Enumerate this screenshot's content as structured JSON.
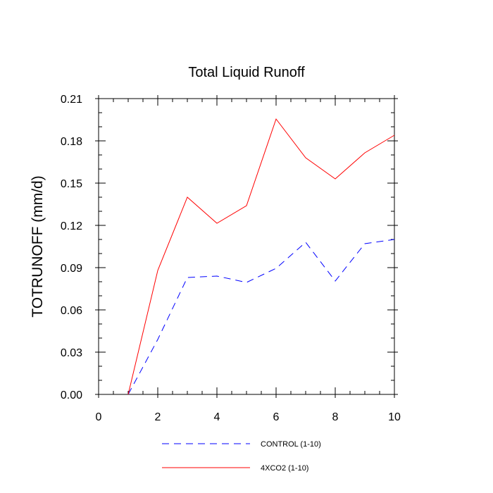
{
  "chart_data": {
    "type": "line",
    "title": "Total Liquid Runoff",
    "xlabel": "",
    "ylabel": "TOTRUNOFF  (mm/d)",
    "xlim": [
      0,
      10
    ],
    "ylim": [
      0,
      0.21
    ],
    "x_ticks": [
      0,
      2,
      4,
      6,
      8,
      10
    ],
    "x_tick_labels": [
      "0",
      "2",
      "4",
      "6",
      "8",
      "10"
    ],
    "y_ticks": [
      0,
      0.03,
      0.06,
      0.09,
      0.12,
      0.15,
      0.18,
      0.21
    ],
    "y_tick_labels": [
      "0.00",
      "0.03",
      "0.06",
      "0.09",
      "0.12",
      "0.15",
      "0.18",
      "0.21"
    ],
    "grid": false,
    "legend_position": "bottom",
    "series": [
      {
        "name": "CONTROL (1-10)",
        "color": "#0000ff",
        "dashed": true,
        "x": [
          1,
          2,
          3,
          4,
          5,
          6,
          7,
          8,
          9,
          10
        ],
        "y": [
          0.0,
          0.039,
          0.083,
          0.084,
          0.0795,
          0.0895,
          0.108,
          0.0805,
          0.107,
          0.11
        ]
      },
      {
        "name": "4XCO2 (1-10)",
        "color": "#ff0000",
        "dashed": false,
        "x": [
          1,
          2,
          3,
          4,
          5,
          6,
          7,
          8,
          9,
          10
        ],
        "y": [
          0.0,
          0.088,
          0.14,
          0.1215,
          0.134,
          0.1955,
          0.168,
          0.153,
          0.1715,
          0.184
        ]
      }
    ]
  }
}
